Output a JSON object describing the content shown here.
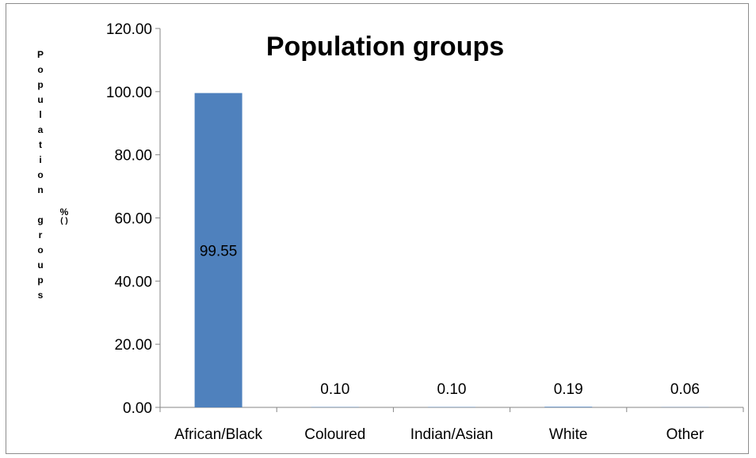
{
  "chart_data": {
    "type": "bar",
    "title": "Population groups",
    "ylabel_main": "Population groups",
    "ylabel_unit": "(%)",
    "xlabel": "",
    "categories": [
      "African/Black",
      "Coloured",
      "Indian/Asian",
      "White",
      "Other"
    ],
    "values": [
      99.55,
      0.1,
      0.1,
      0.19,
      0.06
    ],
    "data_labels": [
      "99.55",
      "0.10",
      "0.10",
      "0.19",
      "0.06"
    ],
    "ylim": [
      0,
      120
    ],
    "yticks": [
      "0.00",
      "20.00",
      "40.00",
      "60.00",
      "80.00",
      "100.00",
      "120.00"
    ],
    "grid": false,
    "legend": "none",
    "colors": {
      "bar": "#4f81bd",
      "axis": "#868686"
    }
  }
}
